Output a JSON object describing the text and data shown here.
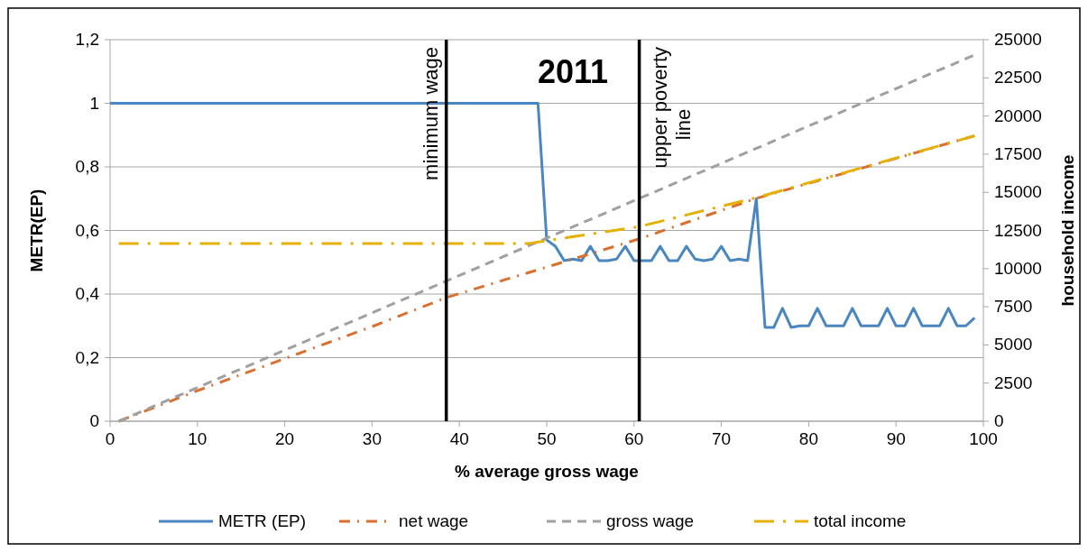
{
  "chart_data": {
    "type": "line",
    "title": "2011",
    "xlabel": "% average gross wage",
    "ylabel": "METR(EP)",
    "y2label": "household income",
    "xlim": [
      0,
      100
    ],
    "xticks": [
      0,
      10,
      20,
      30,
      40,
      50,
      60,
      70,
      80,
      90,
      100
    ],
    "ylim": [
      0,
      1.2
    ],
    "yticks": [
      {
        "value": 0,
        "label": "0"
      },
      {
        "value": 0.2,
        "label": "0,2"
      },
      {
        "value": 0.4,
        "label": "0,4"
      },
      {
        "value": 0.6,
        "label": "0,6"
      },
      {
        "value": 0.8,
        "label": "0,8"
      },
      {
        "value": 1,
        "label": "1"
      },
      {
        "value": 1.2,
        "label": "1,2"
      }
    ],
    "y2lim": [
      0,
      25000
    ],
    "y2ticks": [
      0,
      2500,
      5000,
      7500,
      10000,
      12500,
      15000,
      17500,
      20000,
      22500,
      25000
    ],
    "grid": "y",
    "legend": "bottom",
    "marker": "none",
    "ref_lines": [
      {
        "axis": "x",
        "value": 38.5,
        "label": "minimum wage",
        "color": "#000000"
      },
      {
        "axis": "x",
        "value": 60.6,
        "label": "upper poverty line",
        "color": "#000000"
      }
    ],
    "series": [
      {
        "name": "METR (EP)",
        "color": "#4a86c0",
        "line_style": "solid",
        "x": [
          0,
          49,
          50,
          51,
          52,
          53,
          54,
          55,
          56,
          57,
          58,
          59,
          60,
          61,
          62,
          63,
          64,
          65,
          66,
          67,
          68,
          69,
          70,
          71,
          72,
          73,
          74,
          75,
          76,
          77,
          78,
          79,
          80,
          81,
          82,
          83,
          84,
          85,
          86,
          87,
          88,
          89,
          90,
          91,
          92,
          93,
          94,
          95,
          96,
          97,
          98,
          99
        ],
        "values": [
          1,
          1,
          0.57,
          0.55,
          0.505,
          0.51,
          0.505,
          0.55,
          0.505,
          0.505,
          0.51,
          0.55,
          0.505,
          0.505,
          0.505,
          0.55,
          0.505,
          0.505,
          0.55,
          0.51,
          0.505,
          0.51,
          0.55,
          0.505,
          0.51,
          0.505,
          0.7,
          0.295,
          0.295,
          0.355,
          0.295,
          0.3,
          0.3,
          0.355,
          0.3,
          0.3,
          0.3,
          0.355,
          0.3,
          0.3,
          0.3,
          0.355,
          0.3,
          0.3,
          0.355,
          0.3,
          0.3,
          0.3,
          0.355,
          0.3,
          0.3,
          0.325
        ]
      },
      {
        "name": "net wage",
        "color": "#d9702f",
        "line_style": "dashdot",
        "axis": "y2",
        "x": [
          1,
          10,
          20,
          30,
          38.5,
          50,
          60.6,
          74,
          99
        ],
        "values": [
          0,
          2000,
          4100,
          6200,
          8100,
          10100,
          11950,
          14600,
          18700
        ]
      },
      {
        "name": "gross wage",
        "color": "#a0a0a0",
        "line_style": "dashed",
        "axis": "y2",
        "x": [
          1,
          99
        ],
        "values": [
          0,
          24000
        ]
      },
      {
        "name": "total income",
        "color": "#e6b000",
        "line_style": "longdashdot",
        "axis": "y2",
        "x": [
          1,
          48,
          60.6,
          74,
          99
        ],
        "values": [
          11650,
          11650,
          12750,
          14650,
          18700
        ]
      }
    ]
  }
}
